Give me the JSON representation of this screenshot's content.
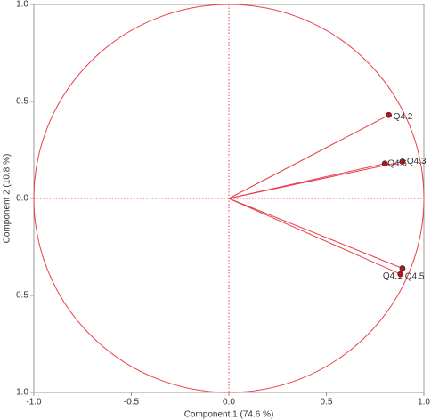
{
  "chart_data": {
    "type": "scatter",
    "xlabel": "Component 1 (74.6 %)",
    "ylabel": "Component 2 (10.8 %)",
    "color": "#e8404a",
    "points": [
      {
        "label": "Q4.2",
        "x": 0.82,
        "y": 0.43
      },
      {
        "label": "Q4.3",
        "x": 0.89,
        "y": 0.19
      },
      {
        "label": "Q4.6",
        "x": 0.8,
        "y": 0.18
      },
      {
        "label": "Q4.1",
        "x": 0.89,
        "y": -0.36
      },
      {
        "label": "Q4.5",
        "x": 0.88,
        "y": -0.39
      }
    ],
    "xlim": [
      -1,
      1
    ],
    "ylim": [
      -1,
      1
    ],
    "xticks": [
      {
        "value": -1,
        "label": "-1.0"
      },
      -0.5,
      {
        "value": 0,
        "label": "0.0"
      },
      0.5,
      {
        "value": 1,
        "label": "1.0"
      }
    ],
    "yticks": [
      {
        "value": -1,
        "label": "-1.0"
      },
      -0.5,
      {
        "value": 0,
        "label": "0.0"
      },
      0.5,
      {
        "value": 1,
        "label": "1.0"
      }
    ],
    "unit_circle": true
  }
}
